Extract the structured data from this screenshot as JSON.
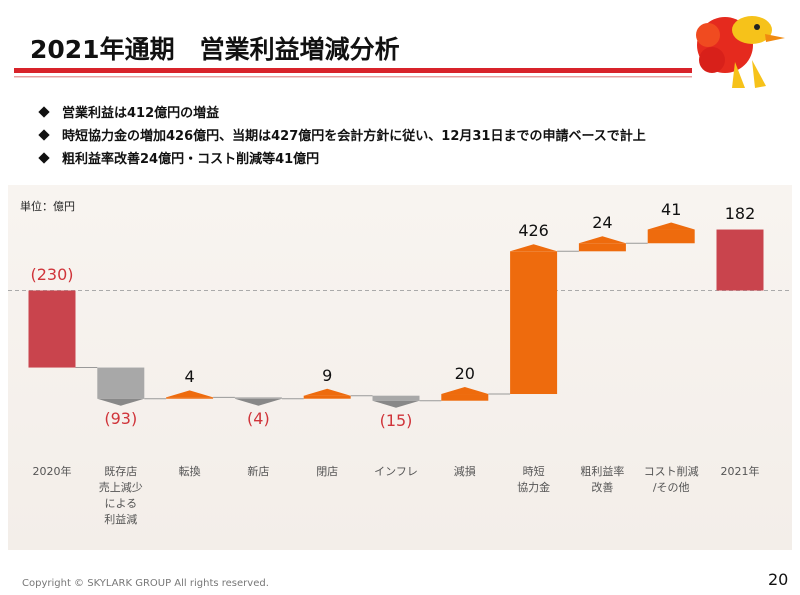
{
  "header": {
    "title": "2021年通期　営業利益増減分析"
  },
  "bullets": [
    "営業利益は412億円の増益",
    "時短協力金の増加426億円、当期は427億円を会計方針に従い、12月31日までの申請ベースで計上",
    "粗利益率改善24億円・コスト削減等41億円"
  ],
  "chart_data": {
    "type": "waterfall",
    "unit_label": "単位：億円",
    "categories": [
      "2020年",
      "既存店\n売上減少\nによる\n利益減",
      "転換",
      "新店",
      "閉店",
      "インフレ",
      "減損",
      "時短\n協力金",
      "粗利益率\n改善",
      "コスト削減\n/その他",
      "2021年"
    ],
    "values": [
      -230,
      -93,
      4,
      -4,
      9,
      -15,
      20,
      426,
      24,
      41,
      182
    ],
    "value_labels": [
      "(230)",
      "(93)",
      "4",
      "(4)",
      "9",
      "(15)",
      "20",
      "426",
      "24",
      "41",
      "182"
    ],
    "is_total": [
      true,
      false,
      false,
      false,
      false,
      false,
      false,
      false,
      false,
      false,
      true
    ],
    "colors": {
      "total": "#c9444d",
      "increase": "#ee6b0d",
      "decrease": "#a8a8a8"
    },
    "ylim": [
      -400,
      300
    ]
  },
  "footer": {
    "copyright": "Copyright © SKYLARK GROUP All rights reserved.",
    "page": "20"
  }
}
